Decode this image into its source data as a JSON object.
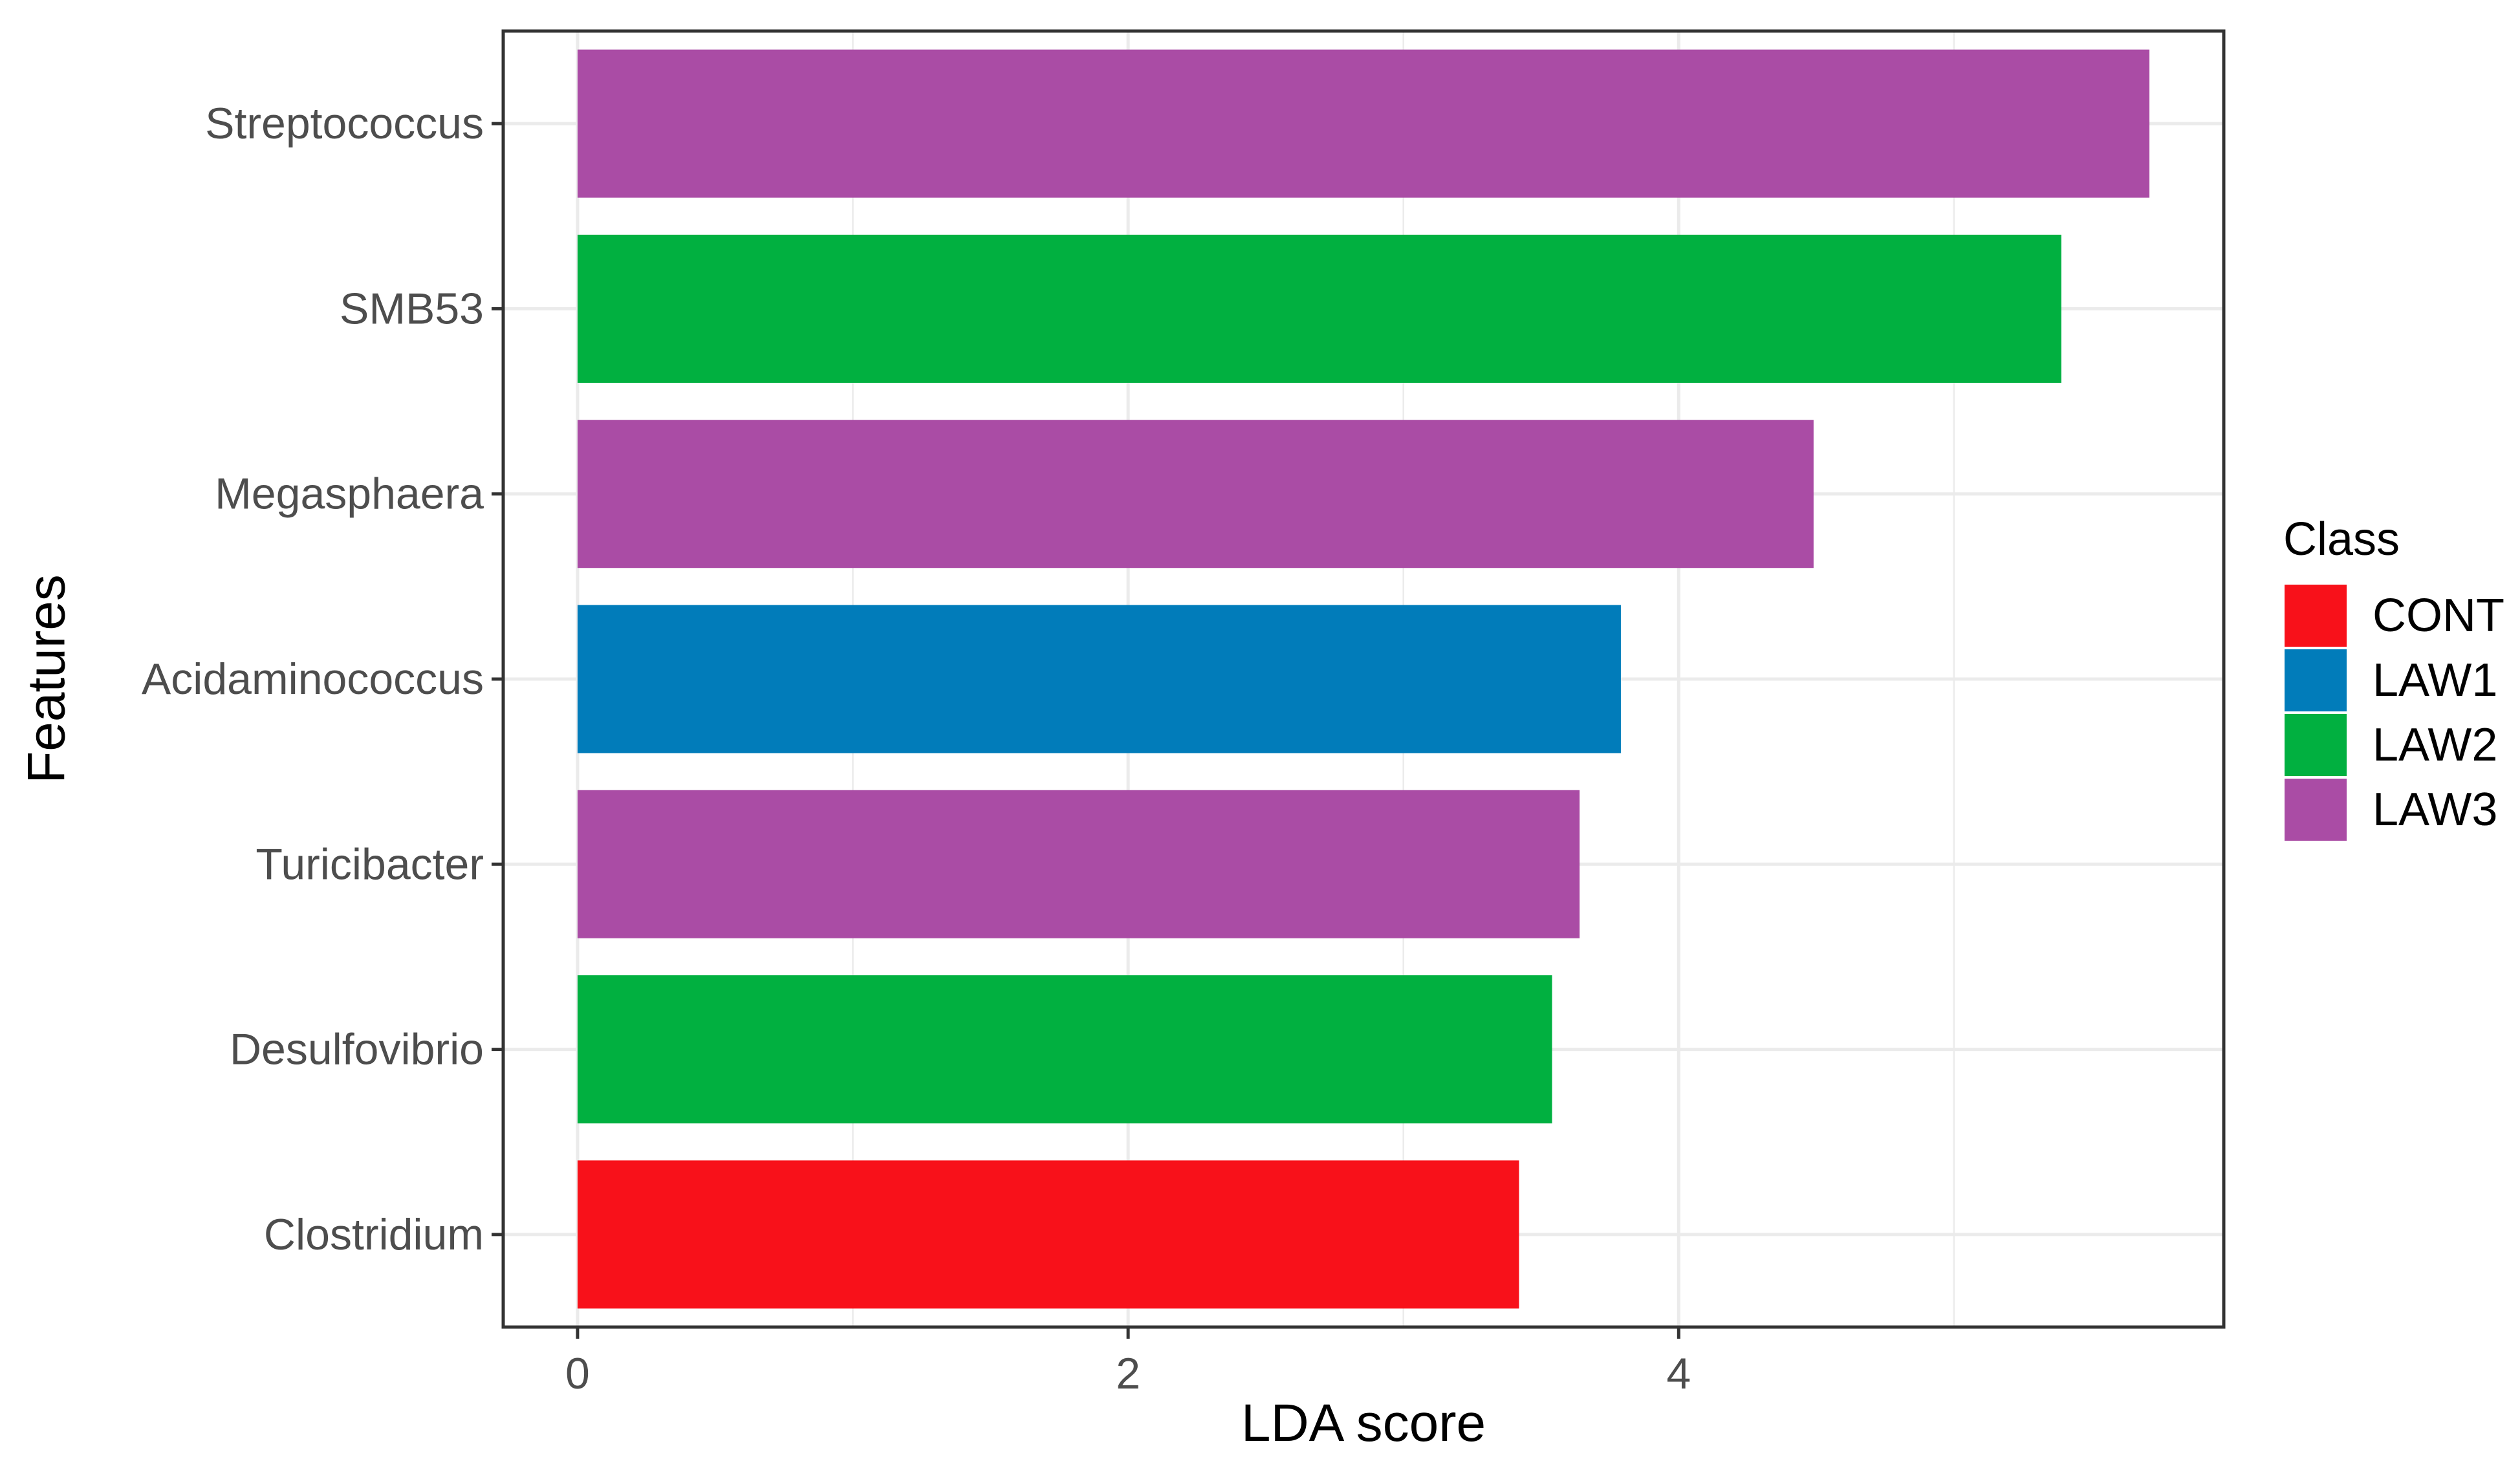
{
  "chart_data": {
    "type": "bar",
    "orientation": "horizontal",
    "xlabel": "LDA score",
    "ylabel": "Features",
    "xlim": [
      -0.27,
      5.98
    ],
    "xticks": [
      0,
      2,
      4
    ],
    "grid": true,
    "legend": {
      "title": "Class",
      "position": "right",
      "entries": [
        {
          "label": "CONT",
          "color": "#f8111a"
        },
        {
          "label": "LAW1",
          "color": "#017cba"
        },
        {
          "label": "LAW2",
          "color": "#01b040"
        },
        {
          "label": "LAW3",
          "color": "#aa4ca5"
        }
      ]
    },
    "categories": [
      "Streptococcus",
      "SMB53",
      "Megasphaera",
      "Acidaminococcus",
      "Turicibacter",
      "Desulfovibrio",
      "Clostridium"
    ],
    "values": [
      5.71,
      5.39,
      4.49,
      3.79,
      3.64,
      3.54,
      3.42
    ],
    "classes": [
      "LAW3",
      "LAW2",
      "LAW3",
      "LAW1",
      "LAW3",
      "LAW2",
      "CONT"
    ]
  }
}
